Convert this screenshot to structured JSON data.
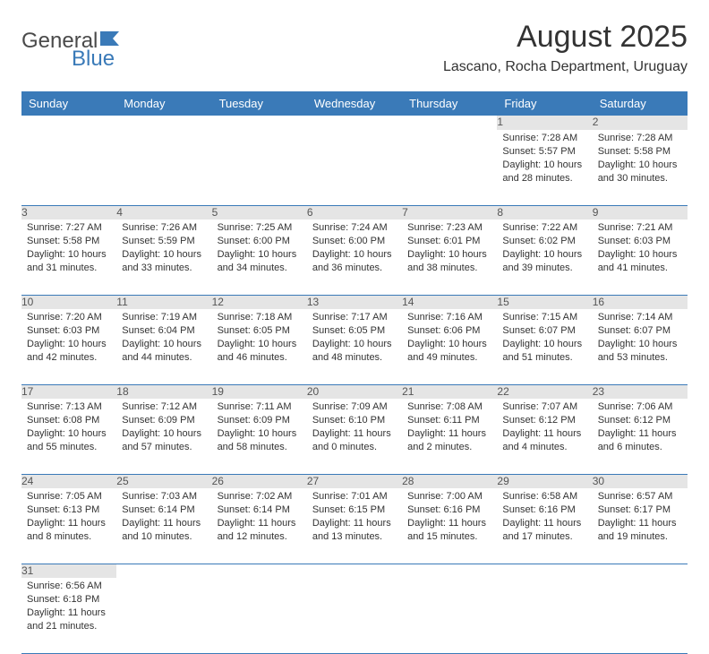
{
  "logo": {
    "text1": "General",
    "text2": "Blue"
  },
  "title": "August 2025",
  "subtitle": "Lascano, Rocha Department, Uruguay",
  "style": {
    "headerBg": "#3a7ab8",
    "headerFg": "#ffffff",
    "dayNumBg": "#e5e5e5",
    "borderColor": "#3a7ab8",
    "logoGray": "#4a4a4a",
    "logoBlue": "#3a7ab8",
    "titleSize": 34,
    "subtitleSize": 16,
    "cellFontSize": 11
  },
  "days": [
    "Sunday",
    "Monday",
    "Tuesday",
    "Wednesday",
    "Thursday",
    "Friday",
    "Saturday"
  ],
  "weeks": [
    [
      null,
      null,
      null,
      null,
      null,
      {
        "n": "1",
        "sr": "7:28 AM",
        "ss": "5:57 PM",
        "dl": "10 hours and 28 minutes."
      },
      {
        "n": "2",
        "sr": "7:28 AM",
        "ss": "5:58 PM",
        "dl": "10 hours and 30 minutes."
      }
    ],
    [
      {
        "n": "3",
        "sr": "7:27 AM",
        "ss": "5:58 PM",
        "dl": "10 hours and 31 minutes."
      },
      {
        "n": "4",
        "sr": "7:26 AM",
        "ss": "5:59 PM",
        "dl": "10 hours and 33 minutes."
      },
      {
        "n": "5",
        "sr": "7:25 AM",
        "ss": "6:00 PM",
        "dl": "10 hours and 34 minutes."
      },
      {
        "n": "6",
        "sr": "7:24 AM",
        "ss": "6:00 PM",
        "dl": "10 hours and 36 minutes."
      },
      {
        "n": "7",
        "sr": "7:23 AM",
        "ss": "6:01 PM",
        "dl": "10 hours and 38 minutes."
      },
      {
        "n": "8",
        "sr": "7:22 AM",
        "ss": "6:02 PM",
        "dl": "10 hours and 39 minutes."
      },
      {
        "n": "9",
        "sr": "7:21 AM",
        "ss": "6:03 PM",
        "dl": "10 hours and 41 minutes."
      }
    ],
    [
      {
        "n": "10",
        "sr": "7:20 AM",
        "ss": "6:03 PM",
        "dl": "10 hours and 42 minutes."
      },
      {
        "n": "11",
        "sr": "7:19 AM",
        "ss": "6:04 PM",
        "dl": "10 hours and 44 minutes."
      },
      {
        "n": "12",
        "sr": "7:18 AM",
        "ss": "6:05 PM",
        "dl": "10 hours and 46 minutes."
      },
      {
        "n": "13",
        "sr": "7:17 AM",
        "ss": "6:05 PM",
        "dl": "10 hours and 48 minutes."
      },
      {
        "n": "14",
        "sr": "7:16 AM",
        "ss": "6:06 PM",
        "dl": "10 hours and 49 minutes."
      },
      {
        "n": "15",
        "sr": "7:15 AM",
        "ss": "6:07 PM",
        "dl": "10 hours and 51 minutes."
      },
      {
        "n": "16",
        "sr": "7:14 AM",
        "ss": "6:07 PM",
        "dl": "10 hours and 53 minutes."
      }
    ],
    [
      {
        "n": "17",
        "sr": "7:13 AM",
        "ss": "6:08 PM",
        "dl": "10 hours and 55 minutes."
      },
      {
        "n": "18",
        "sr": "7:12 AM",
        "ss": "6:09 PM",
        "dl": "10 hours and 57 minutes."
      },
      {
        "n": "19",
        "sr": "7:11 AM",
        "ss": "6:09 PM",
        "dl": "10 hours and 58 minutes."
      },
      {
        "n": "20",
        "sr": "7:09 AM",
        "ss": "6:10 PM",
        "dl": "11 hours and 0 minutes."
      },
      {
        "n": "21",
        "sr": "7:08 AM",
        "ss": "6:11 PM",
        "dl": "11 hours and 2 minutes."
      },
      {
        "n": "22",
        "sr": "7:07 AM",
        "ss": "6:12 PM",
        "dl": "11 hours and 4 minutes."
      },
      {
        "n": "23",
        "sr": "7:06 AM",
        "ss": "6:12 PM",
        "dl": "11 hours and 6 minutes."
      }
    ],
    [
      {
        "n": "24",
        "sr": "7:05 AM",
        "ss": "6:13 PM",
        "dl": "11 hours and 8 minutes."
      },
      {
        "n": "25",
        "sr": "7:03 AM",
        "ss": "6:14 PM",
        "dl": "11 hours and 10 minutes."
      },
      {
        "n": "26",
        "sr": "7:02 AM",
        "ss": "6:14 PM",
        "dl": "11 hours and 12 minutes."
      },
      {
        "n": "27",
        "sr": "7:01 AM",
        "ss": "6:15 PM",
        "dl": "11 hours and 13 minutes."
      },
      {
        "n": "28",
        "sr": "7:00 AM",
        "ss": "6:16 PM",
        "dl": "11 hours and 15 minutes."
      },
      {
        "n": "29",
        "sr": "6:58 AM",
        "ss": "6:16 PM",
        "dl": "11 hours and 17 minutes."
      },
      {
        "n": "30",
        "sr": "6:57 AM",
        "ss": "6:17 PM",
        "dl": "11 hours and 19 minutes."
      }
    ],
    [
      {
        "n": "31",
        "sr": "6:56 AM",
        "ss": "6:18 PM",
        "dl": "11 hours and 21 minutes."
      },
      null,
      null,
      null,
      null,
      null,
      null
    ]
  ],
  "labels": {
    "sunrise": "Sunrise: ",
    "sunset": "Sunset: ",
    "daylight": "Daylight: "
  }
}
